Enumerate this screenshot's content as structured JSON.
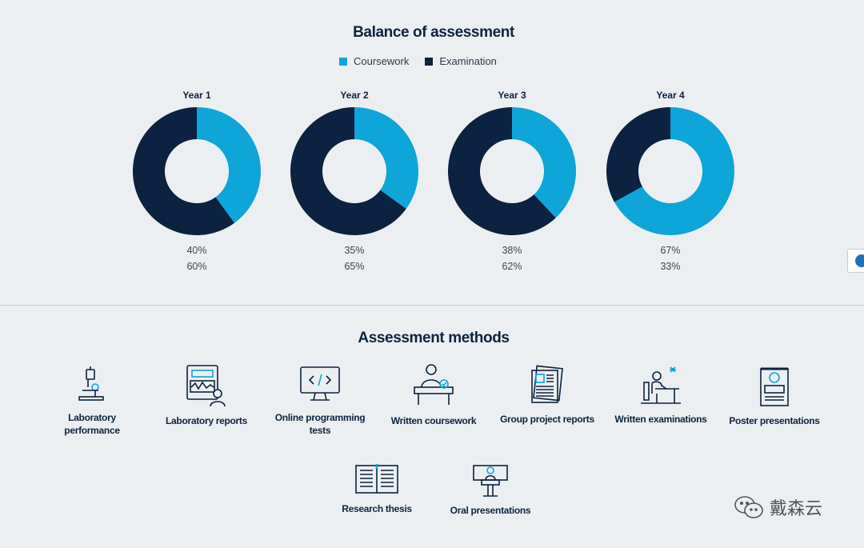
{
  "chart_data": {
    "type": "pie",
    "title": "Balance of assessment",
    "legend": [
      {
        "name": "Coursework",
        "color": "#0ea5d8"
      },
      {
        "name": "Examination",
        "color": "#0b2240"
      }
    ],
    "legend_position": "top-center",
    "categories": [
      "Year 1",
      "Year 2",
      "Year 3",
      "Year 4"
    ],
    "series": [
      {
        "name": "Coursework",
        "values": [
          40,
          35,
          38,
          67
        ],
        "labels": [
          "40%",
          "35%",
          "38%",
          "67%"
        ]
      },
      {
        "name": "Examination",
        "values": [
          60,
          65,
          62,
          33
        ],
        "labels": [
          "60%",
          "65%",
          "62%",
          "33%"
        ]
      }
    ]
  },
  "methods": {
    "title": "Assessment methods",
    "items": [
      {
        "label": "Laboratory performance",
        "icon": "microscope-icon"
      },
      {
        "label": "Laboratory reports",
        "icon": "lab-report-icon"
      },
      {
        "label": "Online programming tests",
        "icon": "code-monitor-icon"
      },
      {
        "label": "Written coursework",
        "icon": "writing-desk-icon"
      },
      {
        "label": "Group project reports",
        "icon": "documents-icon"
      },
      {
        "label": "Written examinations",
        "icon": "exam-desk-icon"
      },
      {
        "label": "Poster presentations",
        "icon": "poster-icon"
      },
      {
        "label": "Research thesis",
        "icon": "open-book-icon"
      },
      {
        "label": "Oral presentations",
        "icon": "lectern-icon"
      }
    ]
  },
  "watermark": {
    "text": "戴森云",
    "icon": "wechat-icon"
  }
}
